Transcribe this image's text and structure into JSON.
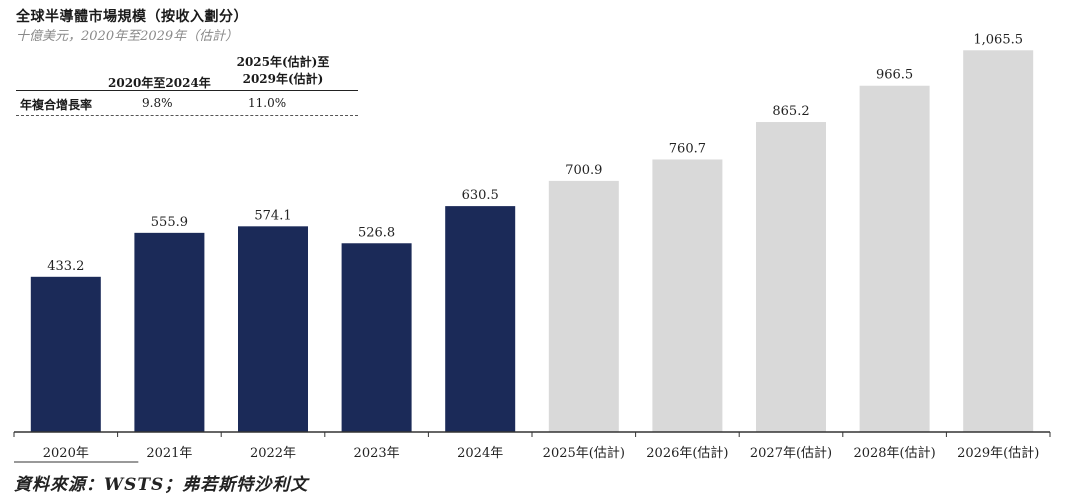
{
  "title": "全球半導體市場規模（按收入劃分）",
  "subtitle": "十億美元，2020年至2029年（估計）",
  "cagr_table": {
    "col1_header": "2020年至2024年",
    "col2_header_line1": "2025年(估計)至",
    "col2_header_line2": "2029年(估計)",
    "row_label": "年複合增長率",
    "col1_value": "9.8%",
    "col2_value": "11.0%"
  },
  "chart_data": {
    "type": "bar",
    "title": "全球半導體市場規模（按收入劃分）",
    "subtitle": "十億美元，2020年至2029年（估計）",
    "categories": [
      "2020年",
      "2021年",
      "2022年",
      "2023年",
      "2024年",
      "2025年(估計)",
      "2026年(估計)",
      "2027年(估計)",
      "2028年(估計)",
      "2029年(估計)"
    ],
    "values": [
      433.2,
      555.9,
      574.1,
      526.8,
      630.5,
      700.9,
      760.7,
      865.2,
      966.5,
      1065.5
    ],
    "value_labels": [
      "433.2",
      "555.9",
      "574.1",
      "526.8",
      "630.5",
      "700.9",
      "760.7",
      "865.2",
      "966.5",
      "1,065.5"
    ],
    "estimated": [
      false,
      false,
      false,
      false,
      false,
      true,
      true,
      true,
      true,
      true
    ],
    "ylim": [
      0,
      1150
    ],
    "grid": false,
    "legend": "none",
    "colors": {
      "actual": "#1b2a58",
      "estimated": "#d9d9d9"
    }
  },
  "source": "資料來源：WSTS；弗若斯特沙利文"
}
